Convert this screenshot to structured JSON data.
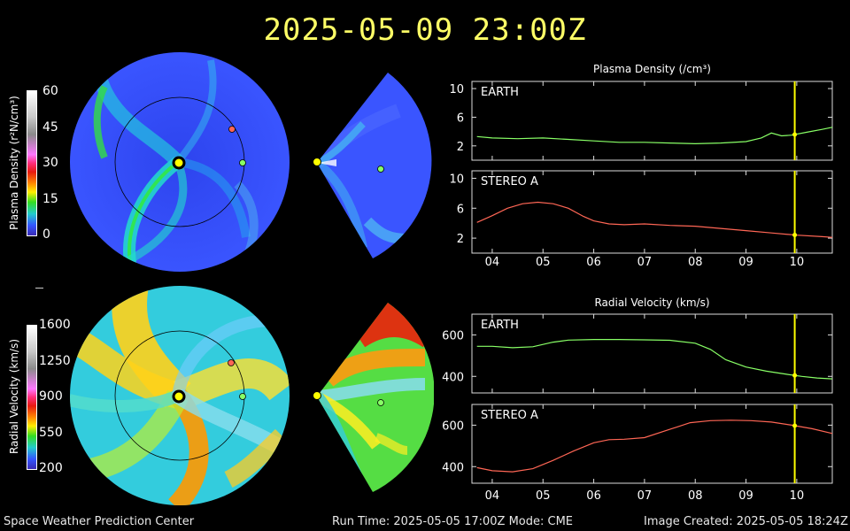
{
  "title": "2025-05-09  23:00Z",
  "footer": {
    "left": "Space Weather Prediction Center",
    "center": "Run Time: 2025-05-05 17:00Z  Mode: CME",
    "right": "Image Created: 2025-05-05 18:24Z"
  },
  "colorbars": {
    "density": {
      "label": "Plasma Density (r²N/cm³)",
      "ticks": [
        "60",
        "45",
        "30",
        "15",
        "0"
      ]
    },
    "velocity": {
      "label": "Radial Velocity (km/s)",
      "ticks": [
        "1600",
        "1250",
        "900",
        "550",
        "200"
      ]
    }
  },
  "colors": {
    "title": "#ffff66",
    "earth": "#88ff66",
    "stereo": "#ff6655",
    "now_line": "#ffff00",
    "sun": "#ffff00"
  },
  "chart_data": [
    {
      "type": "line",
      "title": "Plasma Density (/cm³)",
      "x_ticks": [
        "04",
        "05",
        "06",
        "07",
        "08",
        "09",
        "10"
      ],
      "panels": [
        {
          "label": "EARTH",
          "color": "#88ff66",
          "ylim": [
            0,
            11
          ],
          "yticks": [
            2,
            6,
            10
          ],
          "x": [
            3.7,
            4.0,
            4.5,
            5.0,
            5.5,
            6.0,
            6.5,
            7.0,
            7.5,
            8.0,
            8.5,
            9.0,
            9.3,
            9.5,
            9.7,
            9.9,
            10.2,
            10.5,
            10.7
          ],
          "y": [
            3.3,
            3.1,
            3.0,
            3.1,
            2.9,
            2.7,
            2.5,
            2.5,
            2.4,
            2.3,
            2.4,
            2.6,
            3.1,
            3.8,
            3.4,
            3.5,
            3.9,
            4.3,
            4.6
          ]
        },
        {
          "label": "STEREO A",
          "color": "#ff6655",
          "ylim": [
            0,
            11
          ],
          "yticks": [
            2,
            6,
            10
          ],
          "x": [
            3.7,
            4.0,
            4.3,
            4.6,
            4.9,
            5.2,
            5.5,
            5.8,
            6.0,
            6.3,
            6.6,
            7.0,
            7.5,
            8.0,
            8.5,
            9.0,
            9.5,
            10.0,
            10.5,
            10.7
          ],
          "y": [
            4.1,
            5.0,
            6.0,
            6.6,
            6.8,
            6.6,
            6.0,
            4.9,
            4.3,
            3.9,
            3.8,
            3.9,
            3.7,
            3.6,
            3.3,
            3.0,
            2.7,
            2.4,
            2.2,
            2.1
          ]
        }
      ],
      "now_x": 9.96
    },
    {
      "type": "line",
      "title": "Radial Velocity (km/s)",
      "x_ticks": [
        "04",
        "05",
        "06",
        "07",
        "08",
        "09",
        "10"
      ],
      "panels": [
        {
          "label": "EARTH",
          "color": "#88ff66",
          "ylim": [
            320,
            700
          ],
          "yticks": [
            400,
            600
          ],
          "x": [
            3.7,
            4.0,
            4.4,
            4.8,
            5.2,
            5.5,
            6.0,
            6.5,
            7.0,
            7.5,
            8.0,
            8.3,
            8.6,
            9.0,
            9.4,
            9.8,
            10.1,
            10.4,
            10.7
          ],
          "y": [
            545,
            545,
            538,
            543,
            565,
            575,
            578,
            578,
            576,
            574,
            560,
            530,
            480,
            445,
            425,
            410,
            400,
            392,
            388
          ]
        },
        {
          "label": "STEREO A",
          "color": "#ff6655",
          "ylim": [
            320,
            700
          ],
          "yticks": [
            400,
            600
          ],
          "x": [
            3.7,
            4.0,
            4.4,
            4.8,
            5.2,
            5.6,
            6.0,
            6.3,
            6.6,
            7.0,
            7.5,
            7.9,
            8.3,
            8.7,
            9.1,
            9.5,
            9.9,
            10.3,
            10.7
          ],
          "y": [
            395,
            380,
            375,
            390,
            430,
            475,
            515,
            530,
            532,
            540,
            580,
            612,
            622,
            624,
            622,
            615,
            600,
            583,
            560
          ]
        }
      ],
      "now_x": 9.96
    }
  ]
}
